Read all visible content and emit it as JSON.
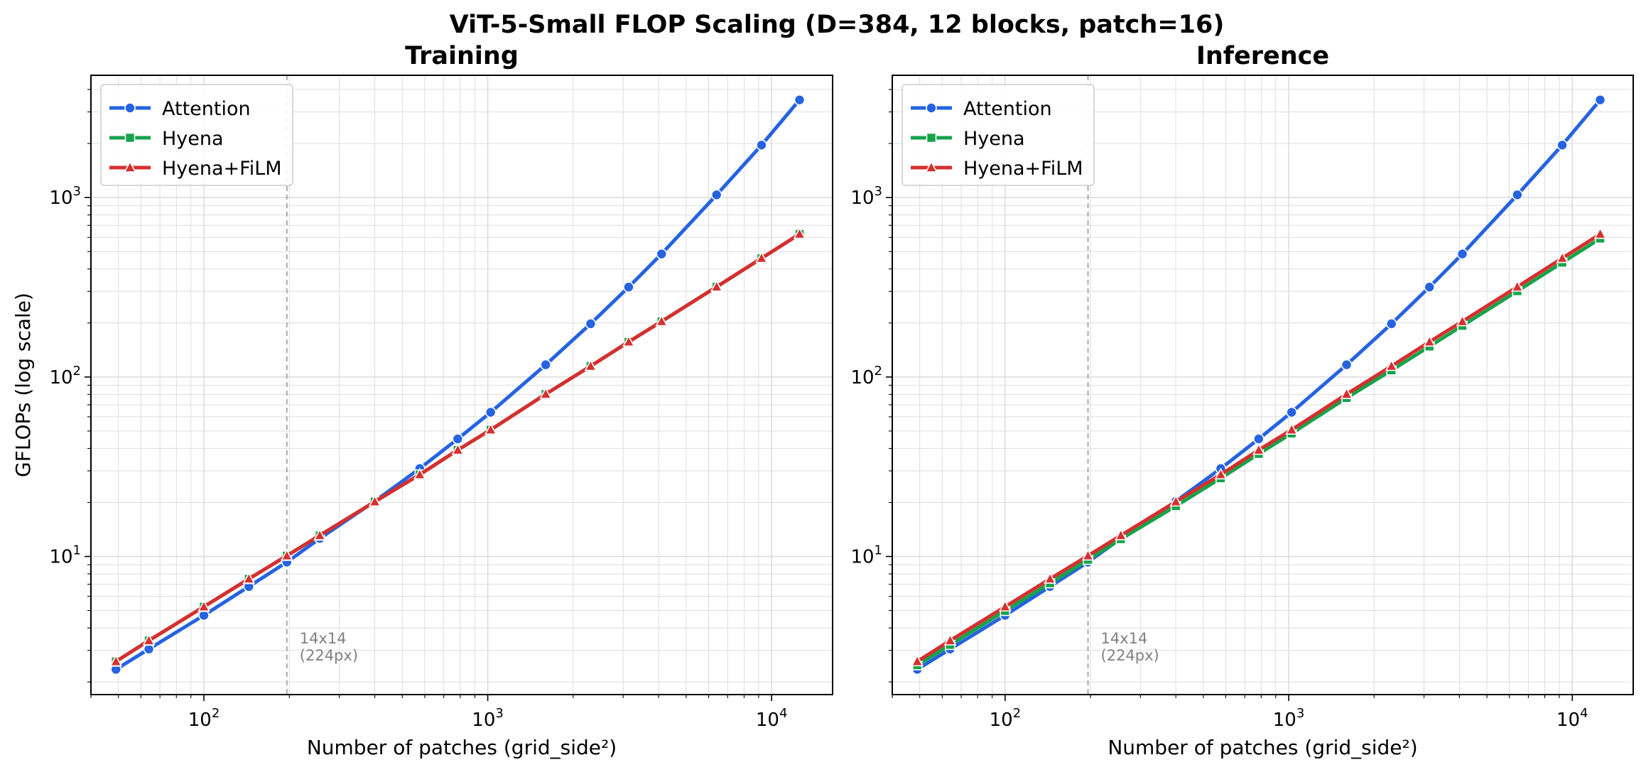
{
  "figure": {
    "title": "ViT-5-Small FLOP Scaling  (D=384, 12 blocks, patch=16)"
  },
  "colors": {
    "Attention": "#2563e0",
    "Hyena": "#16a34a",
    "Hyena+FiLM": "#d62f2f",
    "grid": "#dddddd",
    "refline": "#aaaaaa",
    "annotation": "#808080"
  },
  "chart_data": [
    {
      "type": "line",
      "title": "Training",
      "xlabel": "Number of patches (grid_side²)",
      "ylabel": "GFLOPs (log scale)",
      "xscale": "log",
      "yscale": "log",
      "xlim": [
        40,
        16400
      ],
      "ylim": [
        1.7,
        4800
      ],
      "xticks": [
        {
          "value": 100,
          "base": "10",
          "exp": "2"
        },
        {
          "value": 1000,
          "base": "10",
          "exp": "3"
        },
        {
          "value": 10000,
          "base": "10",
          "exp": "4"
        }
      ],
      "yticks": [
        {
          "value": 10,
          "base": "10",
          "exp": "1"
        },
        {
          "value": 100,
          "base": "10",
          "exp": "2"
        },
        {
          "value": 1000,
          "base": "10",
          "exp": "3"
        }
      ],
      "grid": true,
      "legend_position": "top-left",
      "reference_line": {
        "x": 196,
        "label_line1": "14x14",
        "label_line2": "(224px)"
      },
      "x": [
        49,
        64,
        100,
        144,
        196,
        256,
        400,
        576,
        784,
        1024,
        1600,
        2304,
        3136,
        4096,
        6400,
        9216,
        12544
      ],
      "series": [
        {
          "name": "Attention",
          "marker": "circle",
          "values": [
            2.35,
            3.05,
            4.7,
            6.8,
            9.3,
            12.6,
            20.3,
            30.9,
            45.2,
            63.6,
            117,
            198,
            317,
            485,
            1035,
            1960,
            3500
          ]
        },
        {
          "name": "Hyena",
          "marker": "square",
          "values": [
            2.6,
            3.4,
            5.25,
            7.5,
            10.1,
            13.1,
            20.2,
            28.6,
            39.2,
            50.8,
            80.3,
            115,
            157,
            204,
            318,
            459,
            626
          ]
        },
        {
          "name": "Hyena+FiLM",
          "marker": "triangle",
          "values": [
            2.6,
            3.4,
            5.25,
            7.5,
            10.1,
            13.1,
            20.2,
            28.6,
            39.2,
            50.8,
            80.3,
            115,
            157,
            204,
            318,
            459,
            626
          ]
        }
      ]
    },
    {
      "type": "line",
      "title": "Inference",
      "xlabel": "Number of patches (grid_side²)",
      "ylabel": "",
      "xscale": "log",
      "yscale": "log",
      "xlim": [
        40,
        16400
      ],
      "ylim": [
        1.7,
        4800
      ],
      "xticks": [
        {
          "value": 100,
          "base": "10",
          "exp": "2"
        },
        {
          "value": 1000,
          "base": "10",
          "exp": "3"
        },
        {
          "value": 10000,
          "base": "10",
          "exp": "4"
        }
      ],
      "yticks": [
        {
          "value": 10,
          "base": "10",
          "exp": "1"
        },
        {
          "value": 100,
          "base": "10",
          "exp": "2"
        },
        {
          "value": 1000,
          "base": "10",
          "exp": "3"
        }
      ],
      "grid": true,
      "legend_position": "top-left",
      "reference_line": {
        "x": 196,
        "label_line1": "14x14",
        "label_line2": "(224px)"
      },
      "x": [
        49,
        64,
        100,
        144,
        196,
        256,
        400,
        576,
        784,
        1024,
        1600,
        2304,
        3136,
        4096,
        6400,
        9216,
        12544
      ],
      "series": [
        {
          "name": "Attention",
          "marker": "circle",
          "values": [
            2.35,
            3.05,
            4.7,
            6.8,
            9.3,
            12.6,
            20.3,
            30.9,
            45.2,
            63.6,
            117,
            198,
            317,
            485,
            1035,
            1960,
            3500
          ]
        },
        {
          "name": "Hyena",
          "marker": "square",
          "values": [
            2.48,
            3.22,
            4.98,
            7.1,
            9.6,
            12.5,
            19.1,
            27.3,
            37.3,
            48.5,
            76.5,
            109,
            148,
            193,
            301,
            434,
            591
          ]
        },
        {
          "name": "Hyena+FiLM",
          "marker": "triangle",
          "values": [
            2.6,
            3.4,
            5.25,
            7.5,
            10.1,
            13.1,
            20.2,
            28.6,
            39.2,
            50.8,
            80.3,
            115,
            157,
            204,
            318,
            459,
            626
          ]
        }
      ]
    }
  ]
}
